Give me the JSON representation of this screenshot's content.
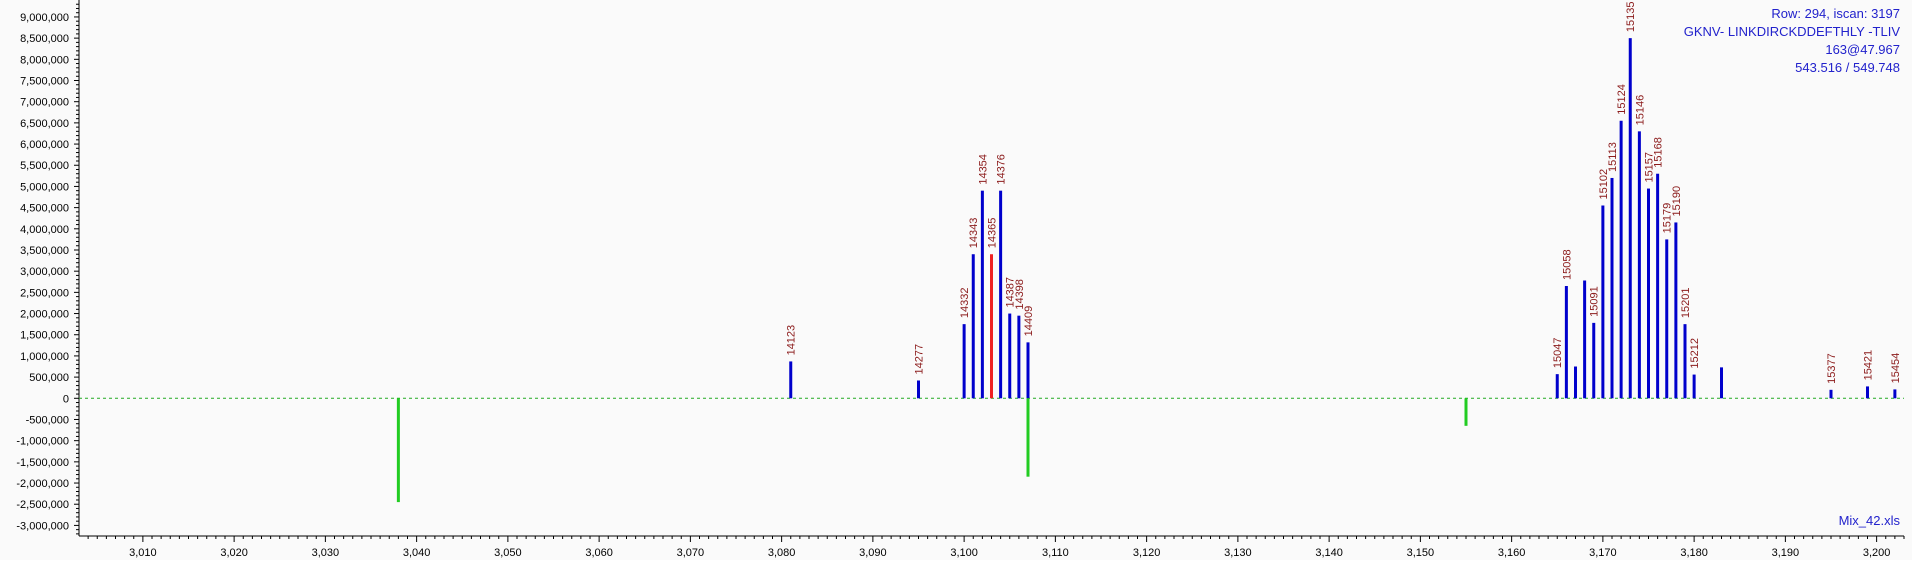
{
  "chart_data": {
    "type": "bar",
    "xlim": [
      3003,
      3203
    ],
    "ylim": [
      -3250000,
      9400000
    ],
    "x_ticks": [
      3010,
      3020,
      3030,
      3040,
      3050,
      3060,
      3070,
      3080,
      3090,
      3100,
      3110,
      3120,
      3130,
      3140,
      3150,
      3160,
      3170,
      3180,
      3190,
      3200
    ],
    "x_tick_labels": [
      "3,010",
      "3,020",
      "3,030",
      "3,040",
      "3,050",
      "3,060",
      "3,070",
      "3,080",
      "3,090",
      "3,100",
      "3,110",
      "3,120",
      "3,130",
      "3,140",
      "3,150",
      "3,160",
      "3,170",
      "3,180",
      "3,190",
      "3,200"
    ],
    "y_ticks": [
      -3000000,
      -2500000,
      -2000000,
      -1500000,
      -1000000,
      -500000,
      0,
      500000,
      1000000,
      1500000,
      2000000,
      2500000,
      3000000,
      3500000,
      4000000,
      4500000,
      5000000,
      5500000,
      6000000,
      6500000,
      7000000,
      7500000,
      8000000,
      8500000,
      9000000
    ],
    "y_tick_labels": [
      "-3,000,000",
      "-2,500,000",
      "-2,000,000",
      "-1,500,000",
      "-1,000,000",
      "-500,000",
      "0",
      "500,000",
      "1,000,000",
      "1,500,000",
      "2,000,000",
      "2,500,000",
      "3,000,000",
      "3,500,000",
      "4,000,000",
      "4,500,000",
      "5,000,000",
      "5,500,000",
      "6,000,000",
      "6,500,000",
      "7,000,000",
      "7,500,000",
      "8,000,000",
      "8,500,000",
      "9,000,000"
    ],
    "grid": false,
    "zero_line": "dashed green",
    "colors": {
      "blue": "#0000cc",
      "red": "#ee2222",
      "green": "#22cc22",
      "label": "#8b1a1a",
      "info": "#2222cc"
    },
    "series": [
      {
        "color": "blue",
        "points": [
          {
            "x": 3081.0,
            "y": 870000,
            "label": "14123"
          },
          {
            "x": 3095.0,
            "y": 420000,
            "label": "14277"
          },
          {
            "x": 3100.0,
            "y": 1750000,
            "label": "14332"
          },
          {
            "x": 3101.0,
            "y": 3400000,
            "label": "14343"
          },
          {
            "x": 3102.0,
            "y": 4900000,
            "label": "14354"
          },
          {
            "x": 3104.0,
            "y": 4900000,
            "label": "14376"
          },
          {
            "x": 3105.0,
            "y": 2000000,
            "label": "14387"
          },
          {
            "x": 3106.0,
            "y": 1950000,
            "label": "14398"
          },
          {
            "x": 3107.0,
            "y": 1320000,
            "label": "14409"
          },
          {
            "x": 3165.0,
            "y": 570000,
            "label": "15047"
          },
          {
            "x": 3166.0,
            "y": 2650000,
            "label": "15058"
          },
          {
            "x": 3167.0,
            "y": 750000,
            "label": ""
          },
          {
            "x": 3168.0,
            "y": 2780000,
            "label": ""
          },
          {
            "x": 3169.0,
            "y": 1780000,
            "label": "15091"
          },
          {
            "x": 3170.0,
            "y": 4550000,
            "label": "15102"
          },
          {
            "x": 3171.0,
            "y": 5200000,
            "label": "15113"
          },
          {
            "x": 3172.0,
            "y": 6550000,
            "label": "15124"
          },
          {
            "x": 3173.0,
            "y": 8500000,
            "label": "15135"
          },
          {
            "x": 3174.0,
            "y": 6300000,
            "label": "15146"
          },
          {
            "x": 3175.0,
            "y": 4950000,
            "label": "15157"
          },
          {
            "x": 3176.0,
            "y": 5300000,
            "label": "15168"
          },
          {
            "x": 3177.0,
            "y": 3750000,
            "label": "15179"
          },
          {
            "x": 3178.0,
            "y": 4150000,
            "label": "15190"
          },
          {
            "x": 3179.0,
            "y": 1750000,
            "label": "15201"
          },
          {
            "x": 3180.0,
            "y": 560000,
            "label": "15212"
          },
          {
            "x": 3183.0,
            "y": 730000,
            "label": ""
          },
          {
            "x": 3195.0,
            "y": 200000,
            "label": "15377"
          },
          {
            "x": 3199.0,
            "y": 280000,
            "label": "15421"
          },
          {
            "x": 3202.0,
            "y": 210000,
            "label": "15454"
          }
        ]
      },
      {
        "color": "red",
        "points": [
          {
            "x": 3103.0,
            "y": 3400000,
            "label": "14365"
          }
        ]
      },
      {
        "color": "green",
        "points": [
          {
            "x": 3038.0,
            "y": -2450000,
            "label": ""
          },
          {
            "x": 3107.0,
            "y": -1850000,
            "label": ""
          },
          {
            "x": 3155.0,
            "y": -650000,
            "label": ""
          }
        ]
      }
    ]
  },
  "info": {
    "line1": "Row: 294, iscan: 3197",
    "line2": "GKNV- LINKDIRCKDDEFTHLY -TLIV",
    "line3": "163@47.967",
    "line4": "543.516 / 549.748",
    "filename": "Mix_42.xls"
  }
}
